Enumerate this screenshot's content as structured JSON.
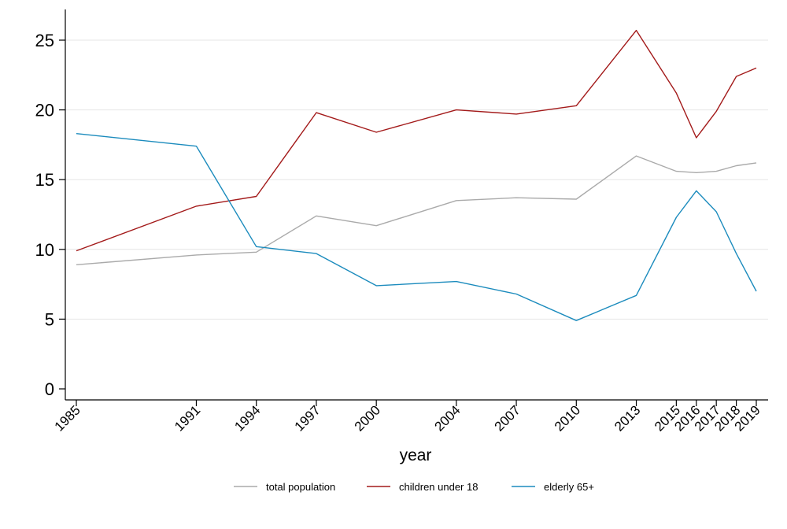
{
  "chart_data": {
    "type": "line",
    "title": "",
    "xlabel": "year",
    "ylabel": "",
    "x": [
      1985,
      1991,
      1994,
      1997,
      2000,
      2004,
      2007,
      2010,
      2013,
      2015,
      2016,
      2017,
      2018,
      2019
    ],
    "xlim": [
      1985,
      2019
    ],
    "ylim": [
      0,
      26
    ],
    "y_ticks": [
      0,
      5,
      10,
      15,
      20,
      25
    ],
    "grid": "horizontal",
    "legend_position": "bottom",
    "series": [
      {
        "name": "total population",
        "color": "#aaaaaa",
        "values": [
          8.9,
          9.6,
          9.8,
          12.4,
          11.7,
          13.5,
          13.7,
          13.6,
          16.7,
          15.6,
          15.5,
          15.6,
          16.0,
          16.2
        ]
      },
      {
        "name": "children under 18",
        "color": "#a31a1a",
        "values": [
          9.9,
          13.1,
          13.8,
          19.8,
          18.4,
          20.0,
          19.7,
          20.3,
          25.7,
          21.2,
          18.0,
          19.9,
          22.4,
          23.0
        ]
      },
      {
        "name": "elderly 65+",
        "color": "#1b8bbd",
        "values": [
          18.3,
          17.4,
          10.2,
          9.7,
          7.4,
          7.7,
          6.8,
          4.9,
          6.7,
          12.3,
          14.2,
          12.7,
          9.7,
          7.0
        ]
      }
    ]
  }
}
